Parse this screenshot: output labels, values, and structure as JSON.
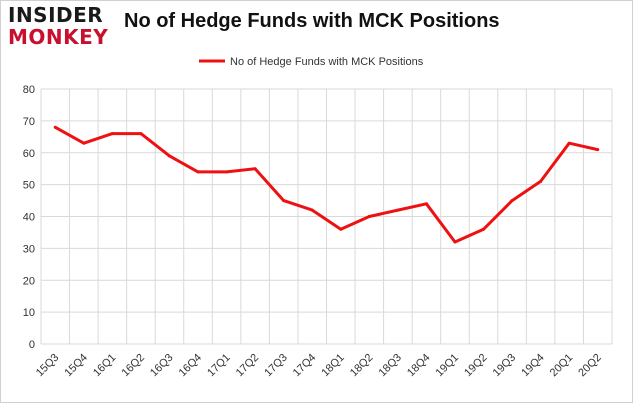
{
  "header": {
    "logo_line1": "INSIDER",
    "logo_line2": "MONKEY",
    "title": "No of Hedge Funds with MCK Positions"
  },
  "colors": {
    "series": "#ee1111",
    "grid": "#d9d9d9",
    "logo_accent": "#c8102e"
  },
  "chart_data": {
    "type": "line",
    "title": "No of Hedge Funds with MCK Positions",
    "xlabel": "",
    "ylabel": "",
    "ylim": [
      0,
      80
    ],
    "yticks": [
      0,
      10,
      20,
      30,
      40,
      50,
      60,
      70,
      80
    ],
    "grid": true,
    "legend": "top-center",
    "categories": [
      "15Q3",
      "15Q4",
      "16Q1",
      "16Q2",
      "16Q3",
      "16Q4",
      "17Q1",
      "17Q2",
      "17Q3",
      "17Q4",
      "18Q1",
      "18Q2",
      "18Q3",
      "18Q4",
      "19Q1",
      "19Q2",
      "19Q3",
      "19Q4",
      "20Q1",
      "20Q2"
    ],
    "series": [
      {
        "name": "No of Hedge Funds with MCK Positions",
        "values": [
          68,
          63,
          66,
          66,
          59,
          54,
          54,
          55,
          45,
          42,
          36,
          40,
          42,
          44,
          32,
          36,
          45,
          51,
          63,
          61
        ]
      }
    ]
  }
}
